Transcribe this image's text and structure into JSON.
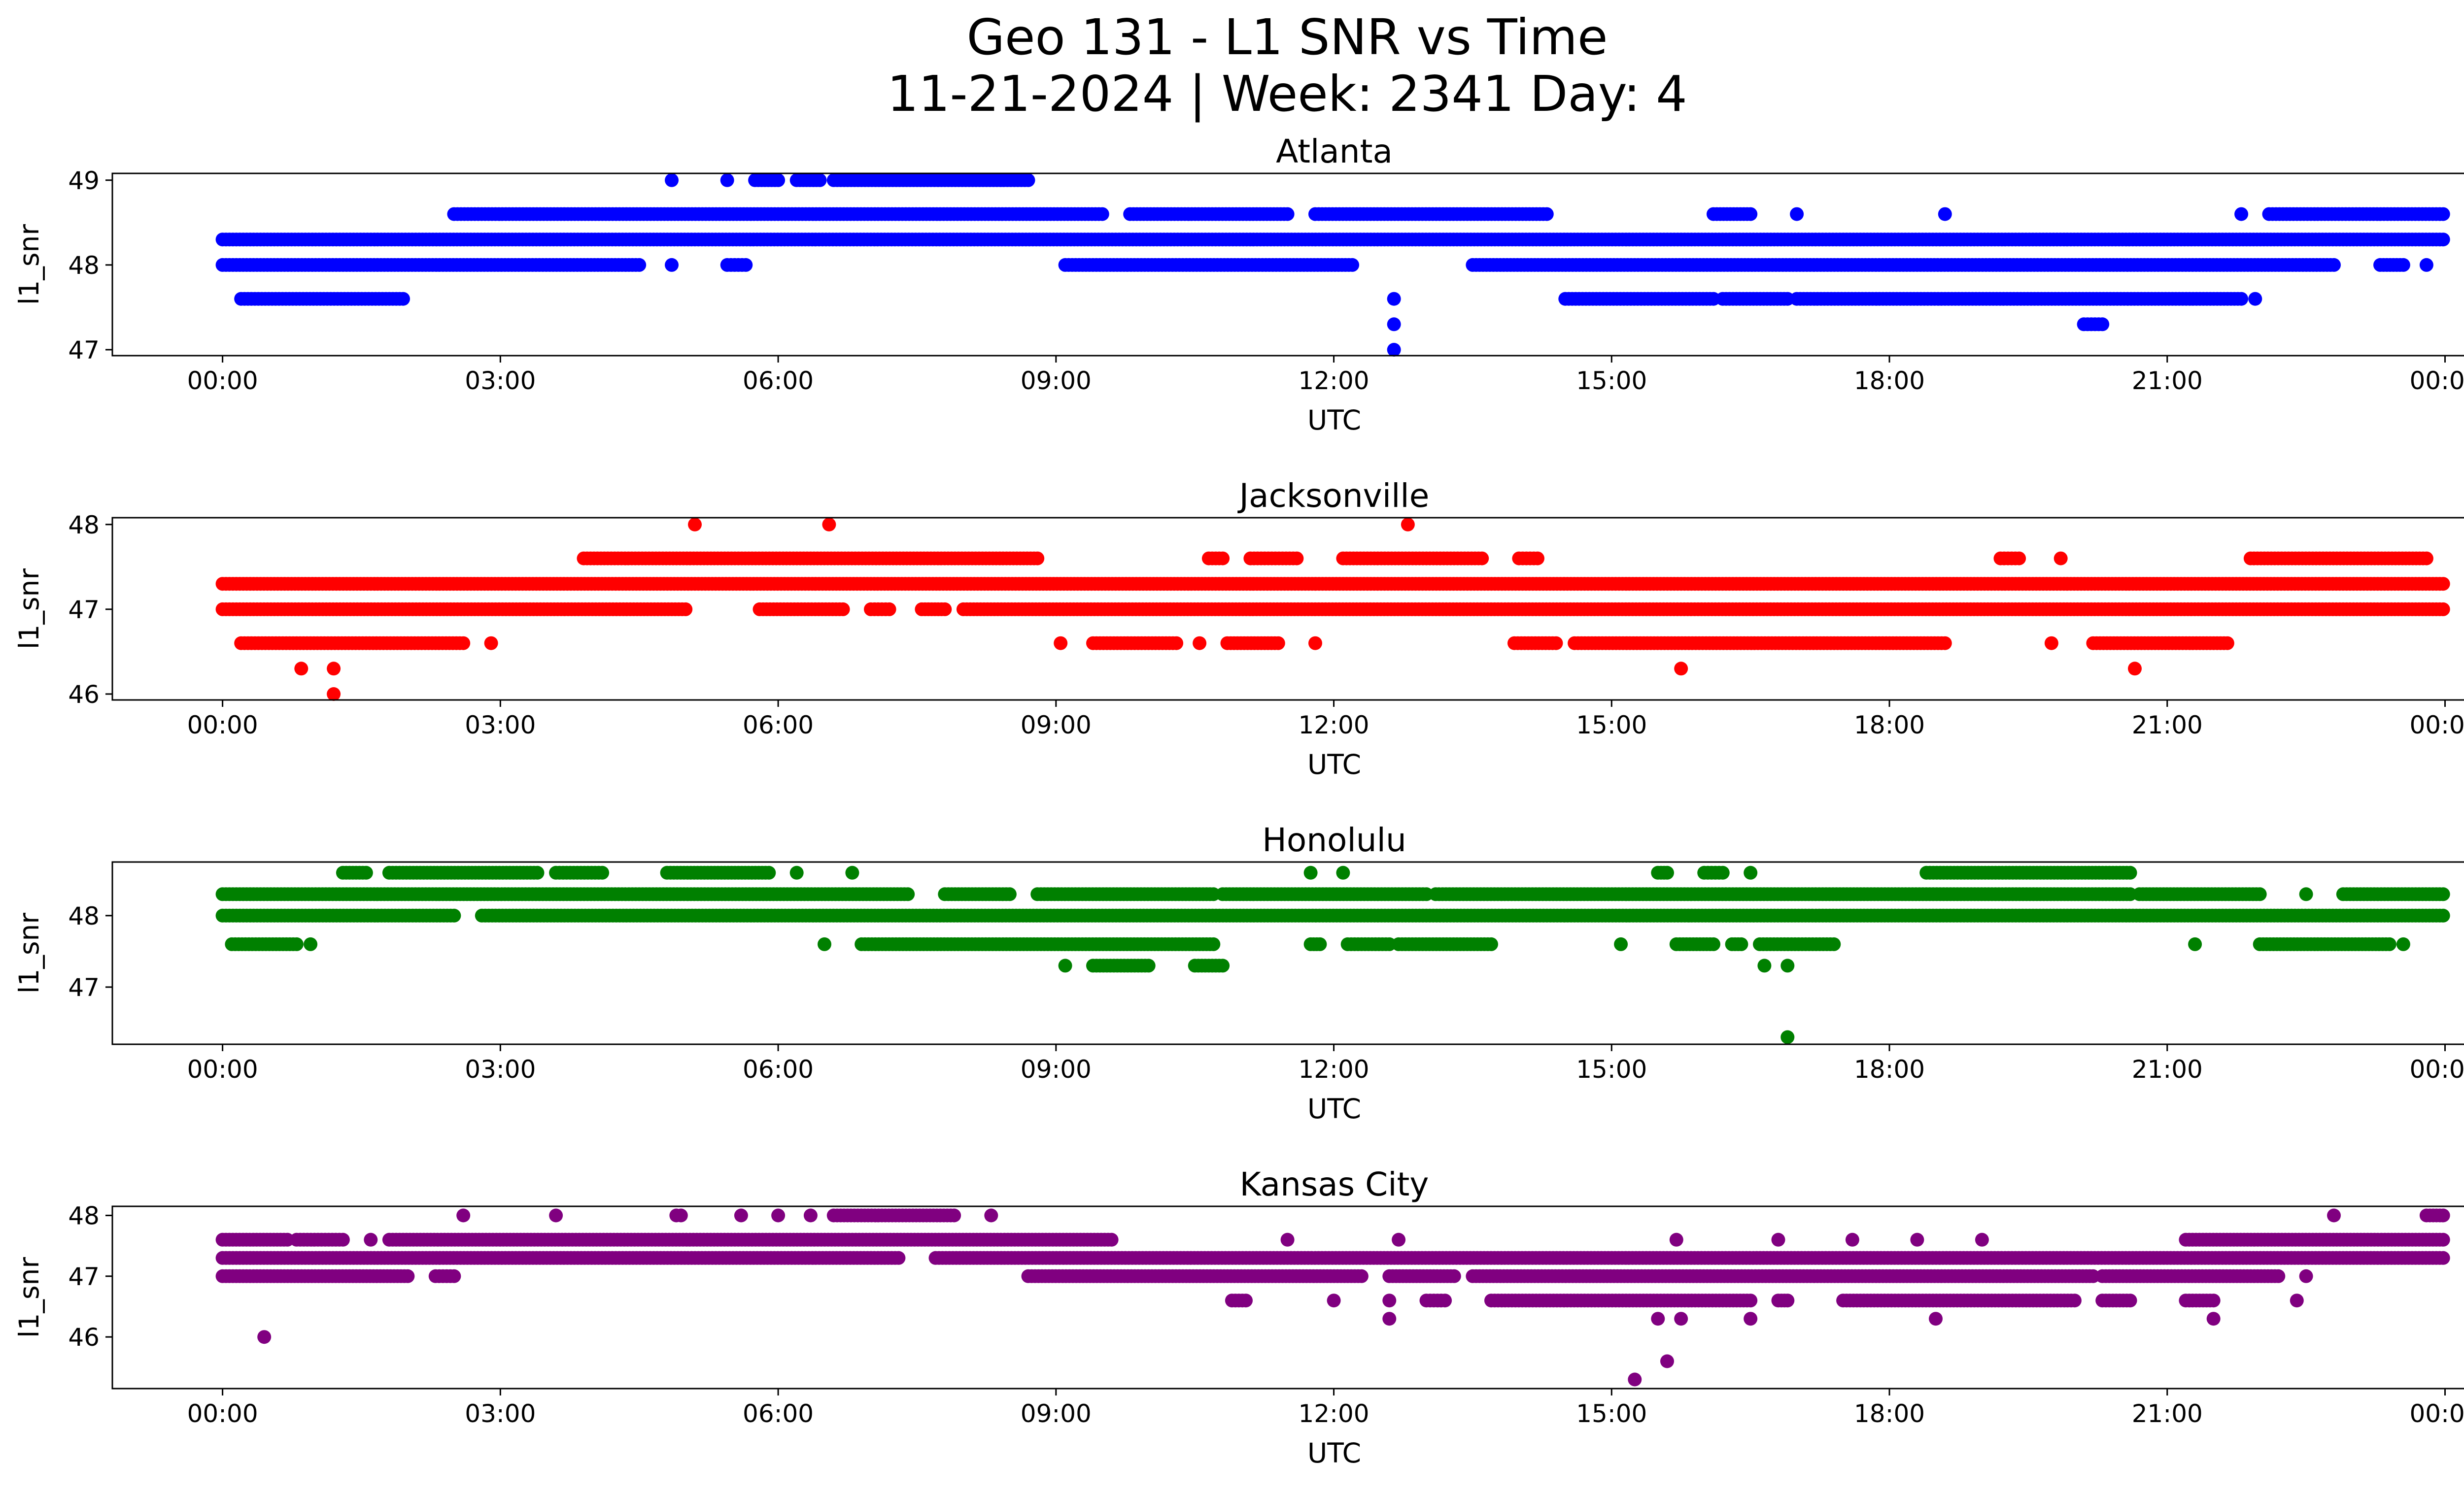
{
  "chart_data": {
    "type": "scatter",
    "title": "Geo 131 - L1 SNR vs Time",
    "subtitle": "11-21-2024 | Week: 2341 Day: 4",
    "x_tick_labels": [
      "00:00",
      "03:00",
      "06:00",
      "09:00",
      "12:00",
      "15:00",
      "18:00",
      "21:00",
      "00:00"
    ],
    "xlim_hours": [
      -1.19,
      25.2
    ],
    "panels": [
      {
        "title": "Atlanta",
        "xlabel": "UTC",
        "ylabel": "l1_snr",
        "color": "#0000ff",
        "ylim": [
          46.93,
          49.08
        ],
        "yticks": [
          47,
          48,
          49
        ],
        "series": [
          {
            "snr": 48.3,
            "runs": [
              [
                0.0,
                23.98
              ]
            ]
          },
          {
            "snr": 48.0,
            "runs": [
              [
                0.0,
                4.5
              ],
              [
                4.85,
                4.85
              ],
              [
                5.45,
                5.65
              ],
              [
                9.1,
                12.2
              ],
              [
                13.5,
                22.8
              ],
              [
                23.3,
                23.55
              ],
              [
                23.8,
                23.8
              ]
            ]
          },
          {
            "snr": 47.6,
            "runs": [
              [
                0.2,
                1.95
              ],
              [
                14.5,
                16.1
              ],
              [
                16.2,
                16.9
              ],
              [
                17.0,
                21.8
              ],
              [
                21.95,
                21.95
              ]
            ]
          },
          {
            "snr": 48.6,
            "runs": [
              [
                2.5,
                9.5
              ],
              [
                9.8,
                11.5
              ],
              [
                11.8,
                14.3
              ],
              [
                16.1,
                16.5
              ],
              [
                17.0,
                17.0
              ],
              [
                18.6,
                18.6
              ],
              [
                21.8,
                21.8
              ],
              [
                22.1,
                23.98
              ]
            ]
          },
          {
            "snr": 49.0,
            "runs": [
              [
                4.85,
                4.85
              ],
              [
                5.45,
                5.45
              ],
              [
                5.75,
                6.0
              ],
              [
                6.2,
                6.45
              ],
              [
                6.6,
                8.7
              ]
            ]
          },
          {
            "snr": 47.3,
            "runs": [
              [
                12.65,
                12.65
              ],
              [
                20.1,
                20.3
              ]
            ]
          },
          {
            "snr": 47.6,
            "runs": [
              [
                12.65,
                12.65
              ]
            ]
          },
          {
            "snr": 47.0,
            "runs": [
              [
                12.65,
                12.65
              ]
            ]
          }
        ]
      },
      {
        "title": "Jacksonville",
        "xlabel": "UTC",
        "ylabel": "l1_snr",
        "color": "#ff0000",
        "ylim": [
          45.93,
          48.08
        ],
        "yticks": [
          46,
          47,
          48
        ],
        "series": [
          {
            "snr": 47.3,
            "runs": [
              [
                0.0,
                23.98
              ]
            ]
          },
          {
            "snr": 47.0,
            "runs": [
              [
                0.0,
                5.0
              ],
              [
                5.8,
                6.7
              ],
              [
                7.0,
                7.2
              ],
              [
                7.55,
                7.8
              ],
              [
                8.0,
                23.98
              ]
            ]
          },
          {
            "snr": 46.6,
            "runs": [
              [
                0.2,
                2.6
              ],
              [
                2.9,
                2.9
              ],
              [
                9.05,
                9.05
              ],
              [
                9.4,
                10.3
              ],
              [
                10.55,
                10.55
              ],
              [
                10.85,
                11.4
              ],
              [
                11.8,
                11.8
              ],
              [
                13.95,
                14.4
              ],
              [
                14.6,
                18.6
              ],
              [
                19.75,
                19.75
              ],
              [
                20.2,
                21.65
              ]
            ]
          },
          {
            "snr": 47.6,
            "runs": [
              [
                3.9,
                8.8
              ],
              [
                10.65,
                10.8
              ],
              [
                11.1,
                11.6
              ],
              [
                12.1,
                13.6
              ],
              [
                14.0,
                14.2
              ],
              [
                19.2,
                19.4
              ],
              [
                19.85,
                19.85
              ],
              [
                21.9,
                23.8
              ]
            ]
          },
          {
            "snr": 48.0,
            "runs": [
              [
                5.1,
                5.1
              ],
              [
                6.55,
                6.55
              ],
              [
                12.8,
                12.8
              ]
            ]
          },
          {
            "snr": 46.3,
            "runs": [
              [
                0.85,
                0.85
              ],
              [
                1.2,
                1.2
              ],
              [
                15.75,
                15.75
              ],
              [
                20.65,
                20.65
              ]
            ]
          },
          {
            "snr": 46.0,
            "runs": [
              [
                1.2,
                1.2
              ]
            ]
          }
        ]
      },
      {
        "title": "Honolulu",
        "xlabel": "UTC",
        "ylabel": "l1_snr",
        "color": "#008000",
        "ylim": [
          46.2,
          48.75
        ],
        "yticks": [
          47,
          48
        ],
        "series": [
          {
            "snr": 48.3,
            "runs": [
              [
                0.0,
                7.4
              ],
              [
                7.8,
                8.5
              ],
              [
                8.8,
                10.7
              ],
              [
                10.8,
                13.0
              ],
              [
                13.1,
                20.6
              ],
              [
                20.7,
                22.0
              ],
              [
                22.5,
                22.5
              ],
              [
                22.9,
                23.98
              ]
            ]
          },
          {
            "snr": 48.0,
            "runs": [
              [
                0.0,
                2.5
              ],
              [
                2.8,
                23.98
              ]
            ]
          },
          {
            "snr": 47.6,
            "runs": [
              [
                0.1,
                0.8
              ],
              [
                0.95,
                0.95
              ],
              [
                6.5,
                6.5
              ],
              [
                6.9,
                10.7
              ],
              [
                11.75,
                11.85
              ],
              [
                12.15,
                12.6
              ],
              [
                12.7,
                13.7
              ],
              [
                15.1,
                15.1
              ],
              [
                15.7,
                16.1
              ],
              [
                16.3,
                16.4
              ],
              [
                16.6,
                17.4
              ],
              [
                21.3,
                21.3
              ],
              [
                22.0,
                23.4
              ],
              [
                23.55,
                23.55
              ]
            ]
          },
          {
            "snr": 48.6,
            "runs": [
              [
                1.3,
                1.55
              ],
              [
                1.8,
                3.4
              ],
              [
                3.6,
                4.1
              ],
              [
                4.8,
                5.9
              ],
              [
                6.2,
                6.2
              ],
              [
                6.8,
                6.8
              ],
              [
                11.75,
                11.75
              ],
              [
                12.1,
                12.1
              ],
              [
                15.5,
                15.6
              ],
              [
                16.0,
                16.2
              ],
              [
                16.5,
                16.5
              ],
              [
                18.4,
                20.6
              ]
            ]
          },
          {
            "snr": 47.3,
            "runs": [
              [
                9.1,
                9.1
              ],
              [
                9.4,
                10.0
              ],
              [
                10.5,
                10.8
              ],
              [
                16.65,
                16.65
              ],
              [
                16.9,
                16.9
              ]
            ]
          },
          {
            "snr": 46.3,
            "runs": [
              [
                16.9,
                16.9
              ]
            ]
          }
        ]
      },
      {
        "title": "Kansas City",
        "xlabel": "UTC",
        "ylabel": "l1_snr",
        "color": "#800080",
        "ylim": [
          45.15,
          48.15
        ],
        "yticks": [
          46,
          47,
          48
        ],
        "series": [
          {
            "snr": 47.6,
            "runs": [
              [
                0.0,
                0.7
              ],
              [
                0.8,
                1.3
              ],
              [
                1.6,
                1.6
              ],
              [
                1.8,
                9.6
              ],
              [
                11.5,
                11.5
              ],
              [
                12.7,
                12.7
              ],
              [
                15.7,
                15.7
              ],
              [
                16.8,
                16.8
              ],
              [
                17.6,
                17.6
              ],
              [
                18.3,
                18.3
              ],
              [
                19.0,
                19.0
              ],
              [
                21.2,
                23.98
              ]
            ]
          },
          {
            "snr": 47.3,
            "runs": [
              [
                0.0,
                7.3
              ],
              [
                7.7,
                23.98
              ]
            ]
          },
          {
            "snr": 47.0,
            "runs": [
              [
                0.0,
                2.0
              ],
              [
                2.3,
                2.5
              ],
              [
                8.7,
                12.3
              ],
              [
                12.6,
                13.3
              ],
              [
                13.5,
                20.2
              ],
              [
                20.3,
                22.2
              ],
              [
                22.5,
                22.5
              ]
            ]
          },
          {
            "snr": 48.0,
            "runs": [
              [
                2.6,
                2.6
              ],
              [
                3.6,
                3.6
              ],
              [
                4.9,
                4.95
              ],
              [
                5.6,
                5.6
              ],
              [
                6.0,
                6.0
              ],
              [
                6.35,
                6.35
              ],
              [
                6.6,
                7.9
              ],
              [
                8.3,
                8.3
              ],
              [
                22.8,
                22.8
              ],
              [
                23.8,
                23.98
              ]
            ]
          },
          {
            "snr": 46.6,
            "runs": [
              [
                10.9,
                11.05
              ],
              [
                12.0,
                12.0
              ],
              [
                12.6,
                12.6
              ],
              [
                13.0,
                13.2
              ],
              [
                13.7,
                16.5
              ],
              [
                16.8,
                16.9
              ],
              [
                17.5,
                20.0
              ],
              [
                20.3,
                20.6
              ],
              [
                21.2,
                21.5
              ],
              [
                22.4,
                22.4
              ]
            ]
          },
          {
            "snr": 46.3,
            "runs": [
              [
                12.6,
                12.6
              ],
              [
                15.5,
                15.5
              ],
              [
                15.75,
                15.75
              ],
              [
                16.5,
                16.5
              ],
              [
                18.5,
                18.5
              ],
              [
                21.5,
                21.5
              ]
            ]
          },
          {
            "snr": 46.0,
            "runs": [
              [
                0.45,
                0.45
              ]
            ]
          },
          {
            "snr": 45.6,
            "runs": [
              [
                15.6,
                15.6
              ]
            ]
          },
          {
            "snr": 45.3,
            "runs": [
              [
                15.25,
                15.25
              ]
            ]
          }
        ]
      }
    ]
  }
}
